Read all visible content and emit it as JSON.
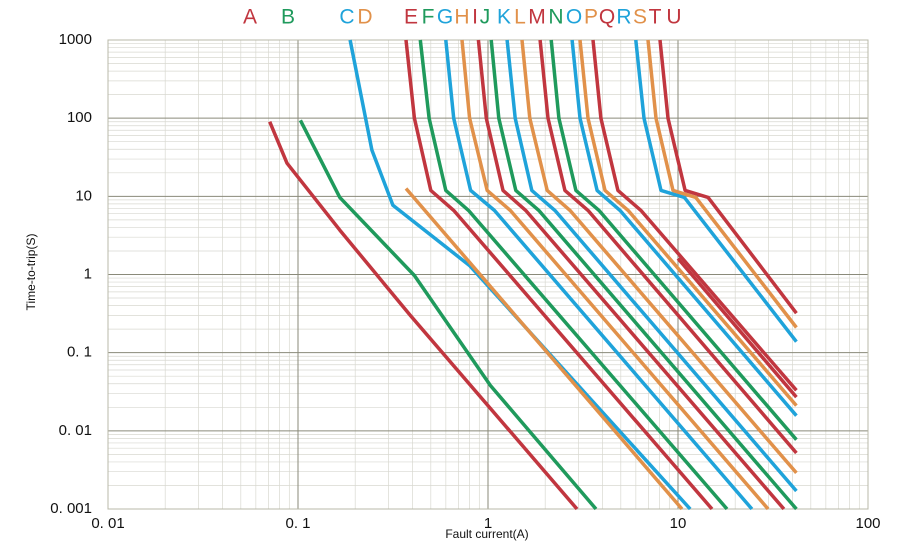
{
  "chart_data": {
    "type": "line",
    "xlabel": "Fault current(A)",
    "ylabel": "Time-to-trip(S)",
    "xscale": "log",
    "yscale": "log",
    "grid": true,
    "xlim": [
      0.01,
      100
    ],
    "ylim": [
      0.001,
      1000
    ],
    "xticks": [
      {
        "value": 0.01,
        "label": "0. 01"
      },
      {
        "value": 0.1,
        "label": "0. 1"
      },
      1,
      10,
      100
    ],
    "yticks": [
      {
        "value": 0.001,
        "label": "0. 001"
      },
      {
        "value": 0.01,
        "label": "0. 01"
      },
      {
        "value": 0.1,
        "label": "0. 1"
      },
      1,
      10,
      100,
      1000
    ],
    "series": [
      {
        "name": "A",
        "color": "#c1363f",
        "x": [
          0.071,
          0.0875,
          0.166,
          0.39,
          2.94
        ],
        "values": [
          90,
          26.5,
          3.7,
          0.3,
          0.001
        ]
      },
      {
        "name": "B",
        "color": "#1f9a5c",
        "x": [
          0.103,
          0.166,
          0.41,
          1.03,
          3.7
        ],
        "values": [
          94,
          9.7,
          0.97,
          0.038,
          0.001
        ]
      },
      {
        "name": "C",
        "color": "#1fa3da",
        "x": [
          0.188,
          0.245,
          0.316,
          0.8,
          11.6
        ],
        "values": [
          1000,
          39,
          7.7,
          1.3,
          0.001
        ]
      },
      {
        "name": "D",
        "color": "#e1914a",
        "x": [
          0.37,
          10.5
        ],
        "values": [
          12.6,
          0.001
        ]
      },
      {
        "name": "E",
        "color": "#c1363f",
        "x": [
          0.37,
          0.41,
          0.5,
          0.66,
          15.1
        ],
        "values": [
          1000,
          100,
          11.9,
          6.6,
          0.001
        ]
      },
      {
        "name": "F",
        "color": "#1f9a5c",
        "x": [
          0.44,
          0.49,
          0.6,
          0.79,
          18.1
        ],
        "values": [
          1000,
          100,
          11.9,
          6.6,
          0.001
        ]
      },
      {
        "name": "G",
        "color": "#1fa3da",
        "x": [
          0.6,
          0.66,
          0.81,
          1.08,
          24.5
        ],
        "values": [
          1000,
          100,
          11.9,
          6.6,
          0.001
        ]
      },
      {
        "name": "H",
        "color": "#e1914a",
        "x": [
          0.73,
          0.8,
          0.99,
          1.31,
          29.8
        ],
        "values": [
          1000,
          100,
          11.9,
          6.6,
          0.001
        ]
      },
      {
        "name": "I",
        "color": "#c1363f",
        "x": [
          0.89,
          0.98,
          1.2,
          1.58,
          36.1
        ],
        "values": [
          1000,
          100,
          11.9,
          6.6,
          0.001
        ]
      },
      {
        "name": "J",
        "color": "#1f9a5c",
        "x": [
          1.04,
          1.14,
          1.4,
          1.85,
          42
        ],
        "values": [
          1000,
          100,
          11.9,
          6.6,
          0.001
        ]
      },
      {
        "name": "K",
        "color": "#1fa3da",
        "x": [
          1.26,
          1.39,
          1.7,
          2.25,
          42
        ],
        "values": [
          1000,
          100,
          11.9,
          6.6,
          0.0017
        ]
      },
      {
        "name": "L",
        "color": "#e1914a",
        "x": [
          1.51,
          1.66,
          2.05,
          2.7,
          42
        ],
        "values": [
          1000,
          100,
          11.9,
          6.6,
          0.0029
        ]
      },
      {
        "name": "M",
        "color": "#c1363f",
        "x": [
          1.88,
          2.07,
          2.54,
          3.36,
          42
        ],
        "values": [
          1000,
          100,
          11.9,
          6.6,
          0.0052
        ]
      },
      {
        "name": "N",
        "color": "#1f9a5c",
        "x": [
          2.15,
          2.36,
          2.9,
          3.84,
          42
        ],
        "values": [
          1000,
          100,
          11.9,
          6.6,
          0.0077
        ]
      },
      {
        "name": "O",
        "color": "#1fa3da",
        "x": [
          2.77,
          3.05,
          3.75,
          4.95,
          42
        ],
        "values": [
          1000,
          100,
          11.9,
          6.6,
          0.0156
        ]
      },
      {
        "name": "P",
        "color": "#e1914a",
        "x": [
          3.05,
          3.36,
          4.13,
          5.46,
          42
        ],
        "values": [
          1000,
          100,
          11.9,
          6.6,
          0.021
        ]
      },
      {
        "name": "Q",
        "color": "#c1363f",
        "x": [
          3.57,
          3.93,
          4.83,
          6.38,
          42
        ],
        "values": [
          1000,
          100,
          11.9,
          6.6,
          0.033
        ]
      },
      {
        "name": "R",
        "color": "#1fa3da",
        "x": [
          6.0,
          6.62,
          8.14,
          10.8,
          42
        ],
        "values": [
          1000,
          100,
          11.9,
          9.7,
          0.138
        ]
      },
      {
        "name": "S",
        "color": "#e1914a",
        "x": [
          6.95,
          7.66,
          9.41,
          12.4,
          42
        ],
        "values": [
          1000,
          100,
          11.9,
          9.7,
          0.21
        ]
      },
      {
        "name": "T",
        "color": "#c1363f",
        "x": [
          8.04,
          8.86,
          10.9,
          14.4,
          42
        ],
        "values": [
          1000,
          100,
          11.9,
          9.7,
          0.32
        ]
      },
      {
        "name": "U",
        "color": "#c1363f",
        "x": [
          10,
          42
        ],
        "values": [
          1.6,
          0.027
        ]
      }
    ]
  }
}
